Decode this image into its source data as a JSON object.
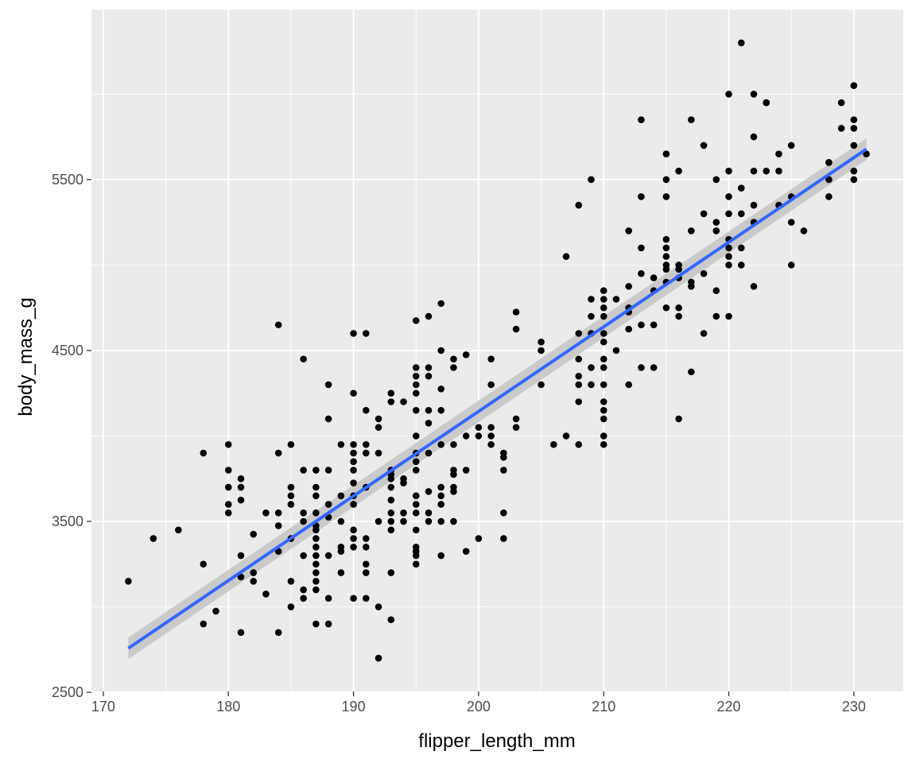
{
  "chart_data": {
    "type": "scatter",
    "title": "",
    "xlabel": "flipper_length_mm",
    "ylabel": "body_mass_g",
    "xlim": [
      169.05,
      233.95
    ],
    "ylim": [
      2505,
      6495
    ],
    "x_ticks": [
      170,
      180,
      190,
      200,
      210,
      220,
      230
    ],
    "y_ticks": [
      2500,
      3500,
      4500,
      5500
    ],
    "grid": true,
    "legend": "none",
    "colors": {
      "panel_background": "#ebebeb",
      "grid_major": "#ffffff",
      "points": "#000000",
      "fit_line": "#3366ff",
      "confidence_band": "#c4c4c4"
    },
    "trend_line": {
      "x": [
        172,
        231
      ],
      "y": [
        2758,
        5678
      ],
      "band_lower": [
        2695,
        5615
      ],
      "band_upper": [
        2821,
        5741
      ]
    },
    "points": [
      [
        172,
        3150
      ],
      [
        174,
        3400
      ],
      [
        176,
        3450
      ],
      [
        178,
        3250
      ],
      [
        178,
        3900
      ],
      [
        178,
        2900
      ],
      [
        179,
        2975
      ],
      [
        180,
        3950
      ],
      [
        180,
        3800
      ],
      [
        180,
        3700
      ],
      [
        180,
        3600
      ],
      [
        180,
        3550
      ],
      [
        181,
        3300
      ],
      [
        181,
        3175
      ],
      [
        181,
        3625
      ],
      [
        181,
        3700
      ],
      [
        181,
        3750
      ],
      [
        181,
        2850
      ],
      [
        182,
        3425
      ],
      [
        182,
        3200
      ],
      [
        182,
        3150
      ],
      [
        183,
        3550
      ],
      [
        183,
        3075
      ],
      [
        184,
        4650
      ],
      [
        184,
        3900
      ],
      [
        184,
        3550
      ],
      [
        184,
        3475
      ],
      [
        184,
        3325
      ],
      [
        184,
        2850
      ],
      [
        185,
        3950
      ],
      [
        185,
        3700
      ],
      [
        185,
        3650
      ],
      [
        185,
        3600
      ],
      [
        185,
        3400
      ],
      [
        185,
        3150
      ],
      [
        185,
        3000
      ],
      [
        186,
        4450
      ],
      [
        186,
        3800
      ],
      [
        186,
        3550
      ],
      [
        186,
        3500
      ],
      [
        186,
        3300
      ],
      [
        186,
        3100
      ],
      [
        186,
        3050
      ],
      [
        187,
        3800
      ],
      [
        187,
        3700
      ],
      [
        187,
        3650
      ],
      [
        187,
        3550
      ],
      [
        187,
        3475
      ],
      [
        187,
        3450
      ],
      [
        187,
        3400
      ],
      [
        187,
        3350
      ],
      [
        187,
        3300
      ],
      [
        187,
        3250
      ],
      [
        187,
        3200
      ],
      [
        187,
        3150
      ],
      [
        187,
        3100
      ],
      [
        187,
        2900
      ],
      [
        188,
        4300
      ],
      [
        188,
        4100
      ],
      [
        188,
        3800
      ],
      [
        188,
        3600
      ],
      [
        188,
        3525
      ],
      [
        188,
        3300
      ],
      [
        188,
        3050
      ],
      [
        188,
        2900
      ],
      [
        189,
        3950
      ],
      [
        189,
        3650
      ],
      [
        189,
        3500
      ],
      [
        189,
        3350
      ],
      [
        189,
        3325
      ],
      [
        189,
        3200
      ],
      [
        190,
        4600
      ],
      [
        190,
        4250
      ],
      [
        190,
        3950
      ],
      [
        190,
        3900
      ],
      [
        190,
        3850
      ],
      [
        190,
        3800
      ],
      [
        190,
        3725
      ],
      [
        190,
        3650
      ],
      [
        190,
        3600
      ],
      [
        190,
        3450
      ],
      [
        190,
        3400
      ],
      [
        190,
        3350
      ],
      [
        190,
        3050
      ],
      [
        191,
        4600
      ],
      [
        191,
        4150
      ],
      [
        191,
        3950
      ],
      [
        191,
        3900
      ],
      [
        191,
        3700
      ],
      [
        191,
        3400
      ],
      [
        191,
        3350
      ],
      [
        191,
        3250
      ],
      [
        191,
        3200
      ],
      [
        191,
        3050
      ],
      [
        192,
        4100
      ],
      [
        192,
        4050
      ],
      [
        192,
        3900
      ],
      [
        192,
        3500
      ],
      [
        192,
        3000
      ],
      [
        192,
        2700
      ],
      [
        193,
        4250
      ],
      [
        193,
        4200
      ],
      [
        193,
        3800
      ],
      [
        193,
        3775
      ],
      [
        193,
        3750
      ],
      [
        193,
        3700
      ],
      [
        193,
        3625
      ],
      [
        193,
        3550
      ],
      [
        193,
        3500
      ],
      [
        193,
        3450
      ],
      [
        193,
        3200
      ],
      [
        193,
        2925
      ],
      [
        194,
        4200
      ],
      [
        194,
        3750
      ],
      [
        194,
        3725
      ],
      [
        194,
        3550
      ],
      [
        194,
        3500
      ],
      [
        195,
        4675
      ],
      [
        195,
        4400
      ],
      [
        195,
        4350
      ],
      [
        195,
        4300
      ],
      [
        195,
        4250
      ],
      [
        195,
        4150
      ],
      [
        195,
        4000
      ],
      [
        195,
        3900
      ],
      [
        195,
        3850
      ],
      [
        195,
        3800
      ],
      [
        195,
        3650
      ],
      [
        195,
        3600
      ],
      [
        195,
        3550
      ],
      [
        195,
        3450
      ],
      [
        195,
        3350
      ],
      [
        195,
        3325
      ],
      [
        195,
        3300
      ],
      [
        195,
        3250
      ],
      [
        196,
        4700
      ],
      [
        196,
        4400
      ],
      [
        196,
        4350
      ],
      [
        196,
        4150
      ],
      [
        196,
        4075
      ],
      [
        196,
        3900
      ],
      [
        196,
        3675
      ],
      [
        196,
        3550
      ],
      [
        196,
        3500
      ],
      [
        197,
        4775
      ],
      [
        197,
        4500
      ],
      [
        197,
        4275
      ],
      [
        197,
        4150
      ],
      [
        197,
        3950
      ],
      [
        197,
        3700
      ],
      [
        197,
        3650
      ],
      [
        197,
        3600
      ],
      [
        197,
        3500
      ],
      [
        197,
        3300
      ],
      [
        198,
        4450
      ],
      [
        198,
        4400
      ],
      [
        198,
        3950
      ],
      [
        198,
        3800
      ],
      [
        198,
        3775
      ],
      [
        198,
        3700
      ],
      [
        198,
        3675
      ],
      [
        198,
        3500
      ],
      [
        199,
        4475
      ],
      [
        199,
        4000
      ],
      [
        199,
        3800
      ],
      [
        199,
        3325
      ],
      [
        200,
        4050
      ],
      [
        200,
        4000
      ],
      [
        200,
        3400
      ],
      [
        201,
        4450
      ],
      [
        201,
        4300
      ],
      [
        201,
        4050
      ],
      [
        201,
        4000
      ],
      [
        201,
        3950
      ],
      [
        202,
        3900
      ],
      [
        202,
        3875
      ],
      [
        202,
        3800
      ],
      [
        202,
        3550
      ],
      [
        202,
        3400
      ],
      [
        203,
        4725
      ],
      [
        203,
        4625
      ],
      [
        203,
        4100
      ],
      [
        203,
        4050
      ],
      [
        205,
        4550
      ],
      [
        205,
        4500
      ],
      [
        205,
        4300
      ],
      [
        206,
        3950
      ],
      [
        207,
        5050
      ],
      [
        207,
        4000
      ],
      [
        208,
        5350
      ],
      [
        208,
        4600
      ],
      [
        208,
        4450
      ],
      [
        208,
        4350
      ],
      [
        208,
        4300
      ],
      [
        208,
        4200
      ],
      [
        208,
        3950
      ],
      [
        209,
        5500
      ],
      [
        209,
        4800
      ],
      [
        209,
        4700
      ],
      [
        209,
        4600
      ],
      [
        209,
        4400
      ],
      [
        209,
        4300
      ],
      [
        210,
        4850
      ],
      [
        210,
        4800
      ],
      [
        210,
        4750
      ],
      [
        210,
        4700
      ],
      [
        210,
        4600
      ],
      [
        210,
        4550
      ],
      [
        210,
        4450
      ],
      [
        210,
        4400
      ],
      [
        210,
        4300
      ],
      [
        210,
        4200
      ],
      [
        210,
        4150
      ],
      [
        210,
        4100
      ],
      [
        210,
        4000
      ],
      [
        210,
        3950
      ],
      [
        211,
        4800
      ],
      [
        211,
        4500
      ],
      [
        212,
        5200
      ],
      [
        212,
        4875
      ],
      [
        212,
        4750
      ],
      [
        212,
        4725
      ],
      [
        212,
        4625
      ],
      [
        212,
        4300
      ],
      [
        213,
        5850
      ],
      [
        213,
        5400
      ],
      [
        213,
        5100
      ],
      [
        213,
        4950
      ],
      [
        213,
        4650
      ],
      [
        213,
        4400
      ],
      [
        214,
        4925
      ],
      [
        214,
        4850
      ],
      [
        214,
        4650
      ],
      [
        214,
        4400
      ],
      [
        215,
        5650
      ],
      [
        215,
        5500
      ],
      [
        215,
        5400
      ],
      [
        215,
        5150
      ],
      [
        215,
        5100
      ],
      [
        215,
        5050
      ],
      [
        215,
        5000
      ],
      [
        215,
        4975
      ],
      [
        215,
        4900
      ],
      [
        215,
        4750
      ],
      [
        216,
        5550
      ],
      [
        216,
        5000
      ],
      [
        216,
        4975
      ],
      [
        216,
        4925
      ],
      [
        216,
        4750
      ],
      [
        216,
        4700
      ],
      [
        216,
        4100
      ],
      [
        217,
        5850
      ],
      [
        217,
        5200
      ],
      [
        217,
        4900
      ],
      [
        217,
        4875
      ],
      [
        217,
        4375
      ],
      [
        218,
        5700
      ],
      [
        218,
        5300
      ],
      [
        218,
        4950
      ],
      [
        218,
        4600
      ],
      [
        219,
        5500
      ],
      [
        219,
        5250
      ],
      [
        219,
        5200
      ],
      [
        219,
        4850
      ],
      [
        219,
        4700
      ],
      [
        220,
        6000
      ],
      [
        220,
        5550
      ],
      [
        220,
        5400
      ],
      [
        220,
        5300
      ],
      [
        220,
        5150
      ],
      [
        220,
        5100
      ],
      [
        220,
        5050
      ],
      [
        220,
        5000
      ],
      [
        220,
        4700
      ],
      [
        221,
        6300
      ],
      [
        221,
        5450
      ],
      [
        221,
        5300
      ],
      [
        221,
        5100
      ],
      [
        221,
        5000
      ],
      [
        222,
        6000
      ],
      [
        222,
        5750
      ],
      [
        222,
        5550
      ],
      [
        222,
        5350
      ],
      [
        222,
        5250
      ],
      [
        222,
        4875
      ],
      [
        223,
        5950
      ],
      [
        223,
        5550
      ],
      [
        224,
        5650
      ],
      [
        224,
        5550
      ],
      [
        224,
        5350
      ],
      [
        225,
        5700
      ],
      [
        225,
        5400
      ],
      [
        225,
        5250
      ],
      [
        225,
        5000
      ],
      [
        226,
        5200
      ],
      [
        228,
        5600
      ],
      [
        228,
        5400
      ],
      [
        228,
        5600
      ],
      [
        229,
        5950
      ],
      [
        229,
        5800
      ],
      [
        230,
        6050
      ],
      [
        230,
        5850
      ],
      [
        230,
        5800
      ],
      [
        230,
        5700
      ],
      [
        230,
        5550
      ],
      [
        230,
        5500
      ],
      [
        231,
        5650
      ],
      [
        228,
        5500
      ],
      [
        223,
        5950
      ]
    ]
  }
}
